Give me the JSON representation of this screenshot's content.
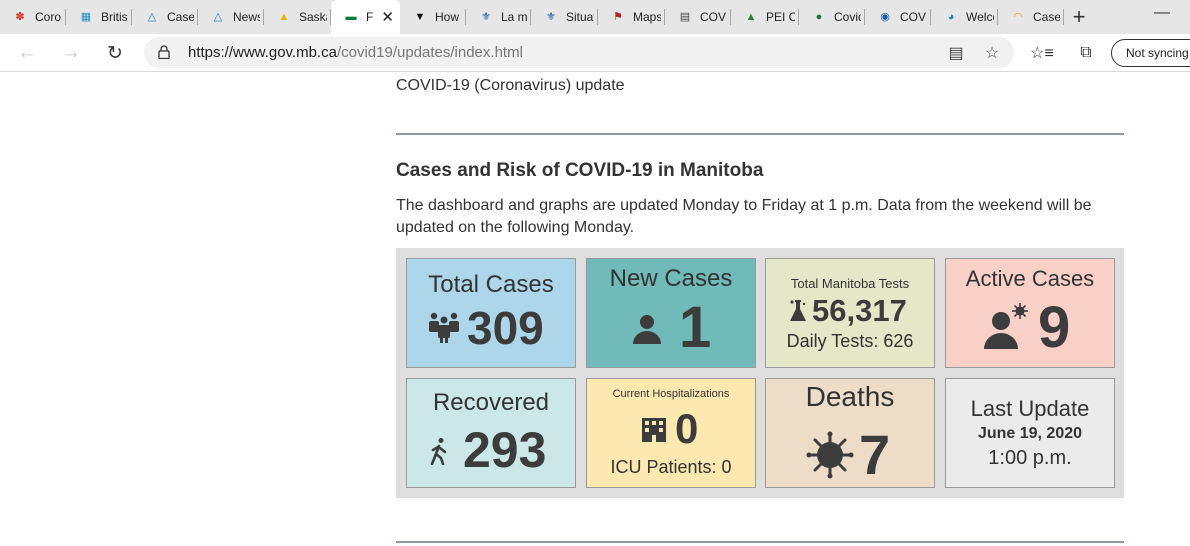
{
  "browser": {
    "tabs": [
      {
        "label": "Coro",
        "icon": "maple-leaf-icon",
        "color": "#d52b1e"
      },
      {
        "label": "Britisl",
        "icon": "bc-icon",
        "color": "#1e90c8"
      },
      {
        "label": "Cases",
        "icon": "alberta-icon",
        "color": "#1f7cc0"
      },
      {
        "label": "News",
        "icon": "alberta-icon",
        "color": "#1f7cc0"
      },
      {
        "label": "Saska",
        "icon": "saskatchewan-icon",
        "color": "#d9b400"
      },
      {
        "label": "F",
        "icon": "manitoba-icon",
        "color": "#0b7a3e"
      },
      {
        "label": "How",
        "icon": "ontario-icon",
        "color": "#111111"
      },
      {
        "label": "La ma",
        "icon": "quebec-icon",
        "color": "#1a4fa0"
      },
      {
        "label": "Situat",
        "icon": "quebec-icon",
        "color": "#1a4fa0"
      },
      {
        "label": "Maps",
        "icon": "nb-icon",
        "color": "#b02020"
      },
      {
        "label": "COVI",
        "icon": "ns-icon",
        "color": "#444444"
      },
      {
        "label": "PEI C",
        "icon": "pei-icon",
        "color": "#2e7d32"
      },
      {
        "label": "Covid",
        "icon": "nl-icon",
        "color": "#2c6e3a"
      },
      {
        "label": "COVI",
        "icon": "yukon-icon",
        "color": "#1d5fa8"
      },
      {
        "label": "Welco",
        "icon": "nwt-icon",
        "color": "#1b8ad6"
      },
      {
        "label": "Case",
        "icon": "nunavut-icon",
        "color": "#e8a100"
      }
    ],
    "active_tab_index": 5,
    "url_host": "https://www.gov.mb.ca",
    "url_path": "/covid19/updates/index.html",
    "sync_label": "Not syncing"
  },
  "page": {
    "intro": "COVID-19 (Coronavirus) update",
    "heading": "Cases and Risk of COVID-19 in Manitoba",
    "description": "The dashboard and graphs are updated Monday to Friday at 1 p.m. Data from the weekend will be updated on the following Monday."
  },
  "dashboard": {
    "total_cases": {
      "label": "Total Cases",
      "value": "309"
    },
    "new_cases": {
      "label": "New Cases",
      "value": "1"
    },
    "tests": {
      "label": "Total Manitoba Tests",
      "value": "56,317",
      "sub": "Daily Tests: 626"
    },
    "active_cases": {
      "label": "Active Cases",
      "value": "9"
    },
    "recovered": {
      "label": "Recovered",
      "value": "293"
    },
    "hospitalizations": {
      "label": "Current Hospitalizations",
      "value": "0",
      "sub": "ICU Patients: 0"
    },
    "deaths": {
      "label": "Deaths",
      "value": "7"
    },
    "last_update": {
      "label": "Last Update",
      "date": "June 19, 2020",
      "time": "1:00 p.m."
    }
  }
}
